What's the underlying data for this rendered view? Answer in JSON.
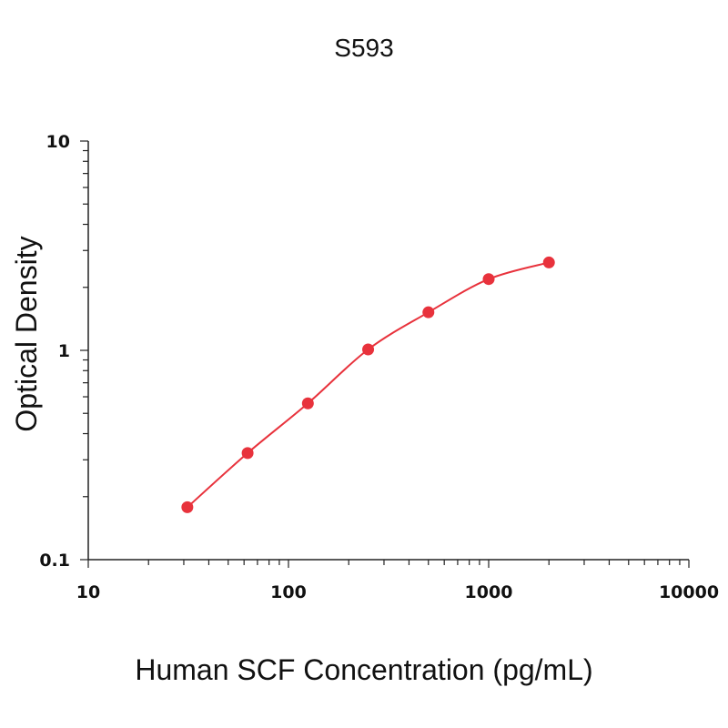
{
  "chart_data": {
    "type": "scatter",
    "title": "S593",
    "xlabel": "Human SCF Concentration (pg/mL)",
    "ylabel": "Optical Density",
    "xscale": "log",
    "yscale": "log",
    "xlim": [
      10,
      10000
    ],
    "ylim": [
      0.1,
      10
    ],
    "xticks": [
      "10",
      "100",
      "1000",
      "10000"
    ],
    "yticks": [
      "0.1",
      "1",
      "10"
    ],
    "grid": false,
    "legend": "none",
    "series": [
      {
        "x": [
          31.25,
          62.5,
          125,
          250,
          500,
          1000,
          2000
        ],
        "y": [
          0.178,
          0.323,
          0.558,
          1.01,
          1.52,
          2.19,
          2.63
        ],
        "color": "#e8323c",
        "fit": "smooth curve"
      }
    ]
  }
}
